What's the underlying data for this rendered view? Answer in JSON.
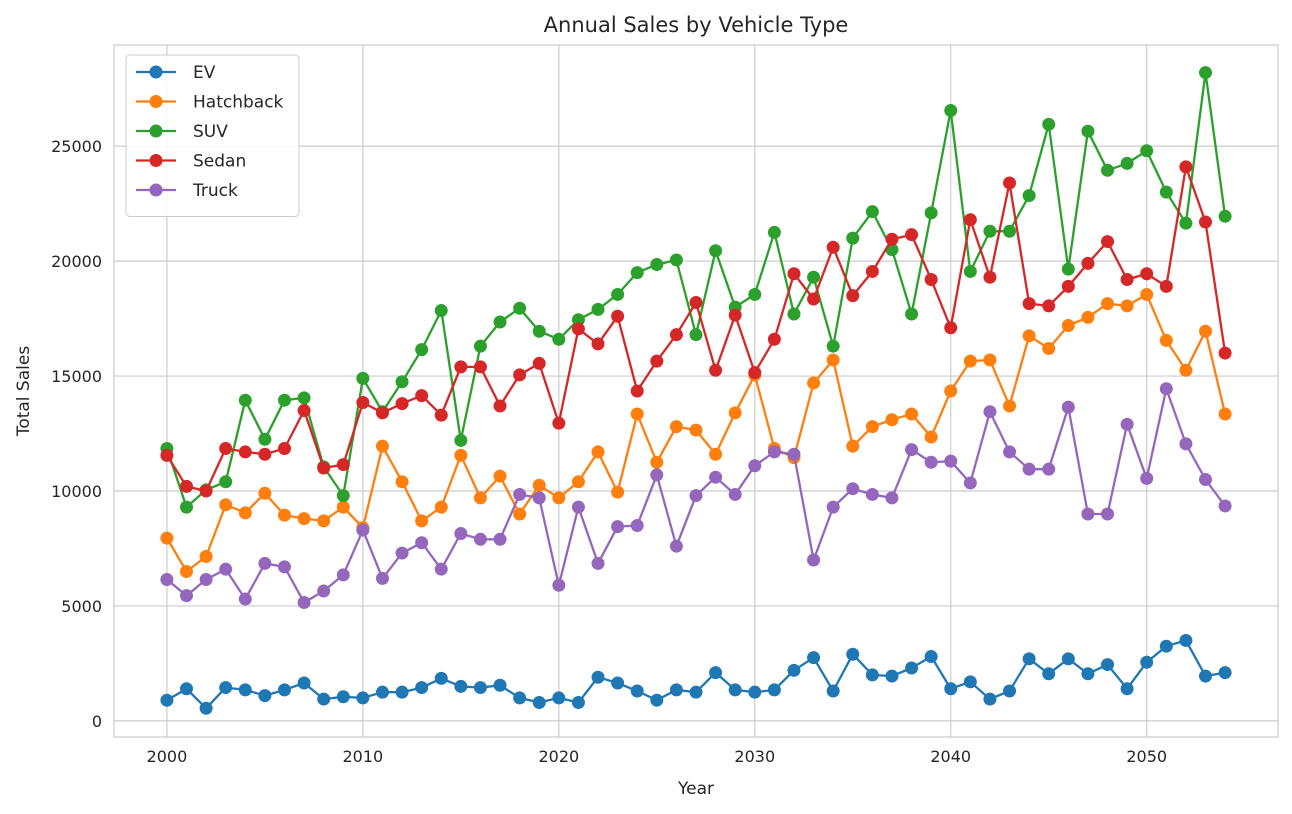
{
  "chart_data": {
    "type": "line",
    "title": "Annual Sales by Vehicle Type",
    "xlabel": "Year",
    "ylabel": "Total Sales",
    "xlim": [
      1997.3,
      2056.7
    ],
    "ylim": [
      -700,
      29400
    ],
    "xticks": [
      2000,
      2010,
      2020,
      2030,
      2040,
      2050
    ],
    "yticks": [
      0,
      5000,
      10000,
      15000,
      20000,
      25000
    ],
    "grid": true,
    "legend_position": "upper left",
    "x": [
      2000,
      2001,
      2002,
      2003,
      2004,
      2005,
      2006,
      2007,
      2008,
      2009,
      2010,
      2011,
      2012,
      2013,
      2014,
      2015,
      2016,
      2017,
      2018,
      2019,
      2020,
      2021,
      2022,
      2023,
      2024,
      2025,
      2026,
      2027,
      2028,
      2029,
      2030,
      2031,
      2032,
      2033,
      2034,
      2035,
      2036,
      2037,
      2038,
      2039,
      2040,
      2041,
      2042,
      2043,
      2044,
      2045,
      2046,
      2047,
      2048,
      2049,
      2050,
      2051,
      2052,
      2053,
      2054
    ],
    "series": [
      {
        "name": "EV",
        "color": "#1f77b4",
        "values": [
          900,
          1400,
          550,
          1450,
          1350,
          1100,
          1350,
          1650,
          950,
          1050,
          1000,
          1250,
          1250,
          1450,
          1850,
          1500,
          1450,
          1550,
          1000,
          800,
          1000,
          800,
          1900,
          1650,
          1300,
          900,
          1350,
          1250,
          2100,
          1350,
          1250,
          1350,
          2200,
          2750,
          1300,
          2900,
          2000,
          1950,
          2300,
          2800,
          1400,
          1700,
          950,
          1300,
          2700,
          2050,
          2700,
          2050,
          2450,
          1400,
          2550,
          3250,
          3500,
          1950,
          2100
        ]
      },
      {
        "name": "Hatchback",
        "color": "#ff7f0e",
        "values": [
          7950,
          6500,
          7150,
          9400,
          9050,
          9900,
          8950,
          8800,
          8700,
          9300,
          8400,
          11950,
          10400,
          8700,
          9300,
          11550,
          9700,
          10650,
          9000,
          10250,
          9700,
          10400,
          11700,
          9950,
          13350,
          11250,
          12800,
          12650,
          11600,
          13400,
          15050,
          11850,
          11450,
          14700,
          15700,
          11950,
          12800,
          13100,
          13350,
          12350,
          14350,
          15650,
          15700,
          13700,
          16750,
          16200,
          17200,
          17550,
          18150,
          18050,
          18550,
          16550,
          15250,
          16950,
          13350
        ]
      },
      {
        "name": "SUV",
        "color": "#2ca02c",
        "values": [
          11850,
          9300,
          10050,
          10400,
          13950,
          12250,
          13950,
          14050,
          11050,
          9800,
          14900,
          13450,
          14750,
          16150,
          17850,
          12200,
          16300,
          17350,
          17950,
          16950,
          16600,
          17450,
          17900,
          18550,
          19500,
          19850,
          20050,
          16800,
          20450,
          18000,
          18550,
          21250,
          17700,
          19300,
          16300,
          21000,
          22150,
          20500,
          17700,
          22100,
          26550,
          19550,
          21300,
          21300,
          22850,
          25950,
          19650,
          25650,
          23950,
          24250,
          24800,
          23000,
          21650,
          28200,
          21950
        ]
      },
      {
        "name": "Sedan",
        "color": "#d62728",
        "values": [
          11550,
          10200,
          10000,
          11850,
          11700,
          11600,
          11850,
          13500,
          11000,
          11150,
          13850,
          13400,
          13800,
          14150,
          13300,
          15400,
          15400,
          13700,
          15050,
          15550,
          12950,
          17050,
          16400,
          17600,
          14350,
          15650,
          16800,
          18200,
          15250,
          17650,
          15150,
          16600,
          19450,
          18350,
          20600,
          18500,
          19550,
          20950,
          21150,
          19200,
          17100,
          21800,
          19300,
          23400,
          18150,
          18050,
          18900,
          19900,
          20850,
          19200,
          19450,
          18900,
          24100,
          21700,
          16000
        ]
      },
      {
        "name": "Truck",
        "color": "#9467bd",
        "values": [
          6150,
          5450,
          6150,
          6600,
          5300,
          6850,
          6700,
          5150,
          5650,
          6350,
          8300,
          6200,
          7300,
          7750,
          6600,
          8150,
          7900,
          7900,
          9850,
          9700,
          5900,
          9300,
          6850,
          8450,
          8500,
          10700,
          7600,
          9800,
          10600,
          9850,
          11100,
          11700,
          11600,
          7000,
          9300,
          10100,
          9850,
          9700,
          11800,
          11250,
          11300,
          10350,
          13450,
          11700,
          10950,
          10950,
          13650,
          9000,
          9000,
          12900,
          10550,
          14450,
          12050,
          10500,
          9350
        ]
      }
    ]
  }
}
